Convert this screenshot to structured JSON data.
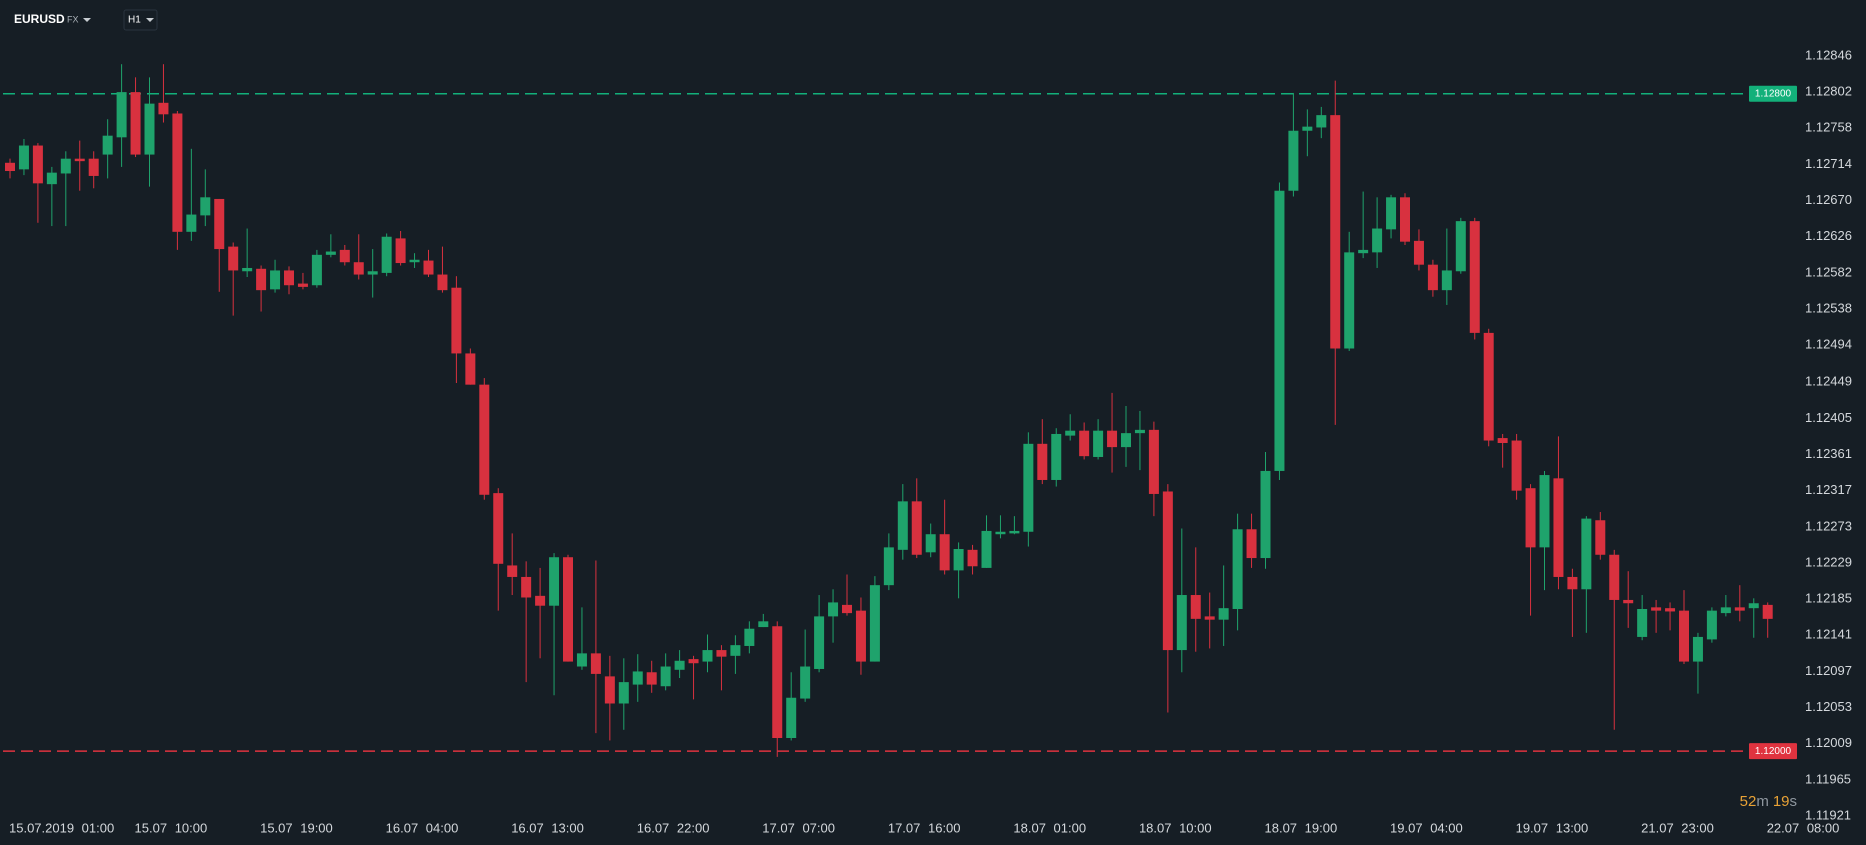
{
  "chart_data": {
    "type": "candlestick",
    "symbol": "EURUSD",
    "market": "FX",
    "timeframe": "H1",
    "categories": [
      "15.07.2019 01:00",
      null,
      null,
      null,
      null,
      null,
      null,
      null,
      null,
      "15.07 10:00",
      null,
      null,
      null,
      null,
      null,
      null,
      null,
      null,
      "15.07 19:00",
      null,
      null,
      null,
      null,
      null,
      null,
      null,
      null,
      "16.07 04:00",
      null,
      null,
      null,
      null,
      null,
      null,
      null,
      null,
      "16.07 13:00",
      null,
      null,
      null,
      null,
      null,
      null,
      null,
      null,
      "16.07 22:00",
      null,
      null,
      null,
      null,
      null,
      null,
      null,
      null,
      "17.07 07:00",
      null,
      null,
      null,
      null,
      null,
      null,
      null,
      null,
      "17.07 16:00",
      null,
      null,
      null,
      null,
      null,
      null,
      null,
      null,
      "18.07 01:00",
      null,
      null,
      null,
      null,
      null,
      null,
      null,
      null,
      "18.07 10:00",
      null,
      null,
      null,
      null,
      null,
      null,
      null,
      null,
      "18.07 19:00",
      null,
      null,
      null,
      null,
      null,
      null,
      null,
      null,
      "19.07 04:00",
      null,
      null,
      null,
      null,
      null,
      null,
      null,
      null,
      "19.07 13:00",
      null,
      null,
      null,
      null,
      null,
      null,
      null,
      null,
      "21.07 23:00",
      null,
      null,
      null,
      null,
      null,
      null,
      null,
      null,
      "22.07 08:00"
    ],
    "open": [
      1.12716,
      1.12708,
      1.12737,
      1.1269,
      1.12703,
      1.12721,
      1.12721,
      1.12726,
      1.12747,
      1.12802,
      1.12726,
      1.12789,
      1.12776,
      1.12632,
      1.12652,
      1.12672,
      1.12614,
      1.12584,
      1.12587,
      1.12562,
      1.12585,
      1.12569,
      1.12567,
      1.12604,
      1.1261,
      1.12595,
      1.1258,
      1.12582,
      1.12624,
      1.12595,
      1.12597,
      1.1258,
      1.12564,
      1.12484,
      1.12446,
      1.12314,
      1.12226,
      1.12212,
      1.12189,
      1.12177,
      1.12236,
      1.12103,
      1.12119,
      1.12091,
      1.12058,
      1.12081,
      1.12096,
      1.12079,
      1.12099,
      1.12112,
      1.12109,
      1.12123,
      1.12116,
      1.12128,
      1.12151,
      1.12152,
      1.12016,
      1.12064,
      1.121,
      1.12164,
      1.12178,
      1.12171,
      1.12109,
      1.12202,
      1.12245,
      1.12304,
      1.12242,
      1.12264,
      1.1222,
      1.12245,
      1.12223,
      1.12264,
      1.12265,
      1.12267,
      1.12374,
      1.1233,
      1.12384,
      1.1239,
      1.12358,
      1.1239,
      1.1237,
      1.12387,
      1.12391,
      1.12316,
      1.12123,
      1.1219,
      1.12164,
      1.1216,
      1.12173,
      1.1227,
      1.12235,
      1.12341,
      1.12682,
      1.12755,
      1.12759,
      1.12774,
      1.1249,
      1.12606,
      1.12607,
      1.12635,
      1.12674,
      1.12621,
      1.12592,
      1.12561,
      1.12584,
      1.12645,
      1.12509,
      1.12381,
      1.12378,
      1.1232,
      1.12248,
      1.12332,
      1.12212,
      1.12197,
      1.12281,
      1.12239,
      1.12184,
      1.12139,
      1.12175,
      1.12174,
      1.12171,
      1.12109,
      1.12136,
      1.12168,
      1.12175,
      1.12174,
      1.12178
    ],
    "high": [
      1.12721,
      1.12745,
      1.1274,
      1.12711,
      1.1273,
      1.12743,
      1.1273,
      1.12769,
      1.12836,
      1.1282,
      1.1282,
      1.12836,
      1.12779,
      1.12733,
      1.12708,
      1.12672,
      1.12619,
      1.12636,
      1.12591,
      1.12598,
      1.1259,
      1.12582,
      1.1261,
      1.12629,
      1.12616,
      1.12629,
      1.12611,
      1.1263,
      1.12633,
      1.12606,
      1.1261,
      1.12614,
      1.12578,
      1.1249,
      1.12454,
      1.1232,
      1.12265,
      1.12231,
      1.12223,
      1.12241,
      1.12239,
      1.12175,
      1.12232,
      1.12116,
      1.12113,
      1.12118,
      1.1211,
      1.12119,
      1.12123,
      1.12116,
      1.12142,
      1.12129,
      1.12141,
      1.12158,
      1.12167,
      1.12158,
      1.12096,
      1.12148,
      1.1219,
      1.12197,
      1.12215,
      1.12187,
      1.12213,
      1.12265,
      1.12325,
      1.12332,
      1.12277,
      1.12306,
      1.12254,
      1.12251,
      1.12287,
      1.12287,
      1.12286,
      1.12388,
      1.12404,
      1.12393,
      1.1241,
      1.124,
      1.12404,
      1.12436,
      1.1242,
      1.12414,
      1.12401,
      1.12325,
      1.12271,
      1.12248,
      1.12193,
      1.12226,
      1.12289,
      1.12289,
      1.12364,
      1.12692,
      1.12801,
      1.12781,
      1.12784,
      1.12816,
      1.12632,
      1.12681,
      1.12674,
      1.12677,
      1.12679,
      1.12635,
      1.12598,
      1.12636,
      1.12649,
      1.12649,
      1.12514,
      1.12386,
      1.12386,
      1.12325,
      1.12341,
      1.12383,
      1.12222,
      1.12286,
      1.12291,
      1.12245,
      1.12219,
      1.1219,
      1.12184,
      1.12181,
      1.12196,
      1.12144,
      1.12175,
      1.1219,
      1.12202,
      1.12186,
      1.12181
    ],
    "low": [
      1.12697,
      1.12701,
      1.12643,
      1.12639,
      1.12639,
      1.12682,
      1.12685,
      1.12697,
      1.12711,
      1.12723,
      1.12687,
      1.12765,
      1.1261,
      1.12621,
      1.12639,
      1.12559,
      1.1253,
      1.12577,
      1.12535,
      1.12558,
      1.12556,
      1.12562,
      1.12564,
      1.12601,
      1.12591,
      1.12574,
      1.12552,
      1.12578,
      1.12591,
      1.12588,
      1.12577,
      1.12558,
      1.12448,
      1.12446,
      1.12306,
      1.12171,
      1.1219,
      1.12084,
      1.12113,
      1.12068,
      1.12109,
      1.12099,
      1.12022,
      1.12013,
      1.12026,
      1.1206,
      1.12071,
      1.12074,
      1.12089,
      1.12063,
      1.12096,
      1.12074,
      1.12094,
      1.12119,
      1.12151,
      1.11993,
      1.12013,
      1.1206,
      1.12096,
      1.12132,
      1.12165,
      1.12093,
      1.12109,
      1.12196,
      1.12233,
      1.12235,
      1.12236,
      1.12215,
      1.12186,
      1.12215,
      1.12223,
      1.12259,
      1.12264,
      1.12249,
      1.12325,
      1.12322,
      1.12378,
      1.12355,
      1.12355,
      1.12339,
      1.12346,
      1.12342,
      1.12286,
      1.12047,
      1.12096,
      1.12121,
      1.12125,
      1.12128,
      1.12147,
      1.12223,
      1.12222,
      1.1233,
      1.12675,
      1.12724,
      1.12746,
      1.12397,
      1.12487,
      1.126,
      1.12588,
      1.12624,
      1.12616,
      1.12585,
      1.12553,
      1.12543,
      1.12581,
      1.12501,
      1.12371,
      1.12345,
      1.12306,
      1.12165,
      1.12196,
      1.12197,
      1.12139,
      1.12144,
      1.12233,
      1.12026,
      1.1215,
      1.12135,
      1.12144,
      1.12147,
      1.12106,
      1.1207,
      1.12132,
      1.12164,
      1.12158,
      1.12138,
      1.12138
    ],
    "close": [
      1.12706,
      1.12737,
      1.12691,
      1.12704,
      1.12721,
      1.12718,
      1.127,
      1.12749,
      1.12802,
      1.12726,
      1.12788,
      1.12775,
      1.12632,
      1.12653,
      1.12674,
      1.12611,
      1.12585,
      1.12588,
      1.12561,
      1.12585,
      1.12567,
      1.12565,
      1.12604,
      1.12608,
      1.12595,
      1.1258,
      1.12584,
      1.12626,
      1.12594,
      1.12598,
      1.1258,
      1.12561,
      1.12484,
      1.12446,
      1.12312,
      1.12228,
      1.12212,
      1.12187,
      1.12177,
      1.12236,
      1.12109,
      1.12119,
      1.12094,
      1.12058,
      1.12084,
      1.12097,
      1.12081,
      1.12103,
      1.1211,
      1.12107,
      1.12123,
      1.12115,
      1.12129,
      1.12149,
      1.12158,
      1.12016,
      1.12065,
      1.12103,
      1.12164,
      1.12181,
      1.12168,
      1.12109,
      1.12202,
      1.12248,
      1.12304,
      1.12239,
      1.12264,
      1.1222,
      1.12246,
      1.12225,
      1.12268,
      1.12267,
      1.12268,
      1.12374,
      1.1233,
      1.12386,
      1.1239,
      1.12359,
      1.1239,
      1.1237,
      1.12387,
      1.12391,
      1.12313,
      1.12123,
      1.1219,
      1.12161,
      1.1216,
      1.12174,
      1.1227,
      1.12235,
      1.12341,
      1.12682,
      1.12755,
      1.1276,
      1.12774,
      1.1249,
      1.12607,
      1.1261,
      1.12636,
      1.12674,
      1.1262,
      1.12592,
      1.12561,
      1.12585,
      1.12645,
      1.12509,
      1.12378,
      1.12375,
      1.12317,
      1.12248,
      1.12336,
      1.12212,
      1.12197,
      1.12283,
      1.12239,
      1.12184,
      1.1218,
      1.12173,
      1.12171,
      1.1217,
      1.12109,
      1.12139,
      1.12171,
      1.12175,
      1.12171,
      1.1218,
      1.12161
    ],
    "up_color": "#1fa36c",
    "down_color": "#d8313f",
    "ylim": [
      1.11915,
      1.12863
    ],
    "yticks": [
      1.12846,
      1.12802,
      1.12758,
      1.12714,
      {
        "value": 1.1267,
        "label": "1.12670"
      },
      1.12626,
      1.12582,
      1.12538,
      1.12494,
      1.12449,
      1.12405,
      1.12361,
      1.12317,
      1.12273,
      1.12229,
      1.12185,
      1.12141,
      1.12097,
      1.12053,
      1.12009,
      1.11965,
      1.11921
    ],
    "levels": [
      {
        "value": 1.128,
        "label": "1.12800",
        "color": "#13b07a"
      },
      {
        "value": 1.12,
        "label": "1.12000",
        "color": "#e0333f"
      }
    ],
    "timer": {
      "minutes": 52,
      "minutes_unit": "m",
      "seconds": 19,
      "seconds_unit": "s"
    }
  }
}
